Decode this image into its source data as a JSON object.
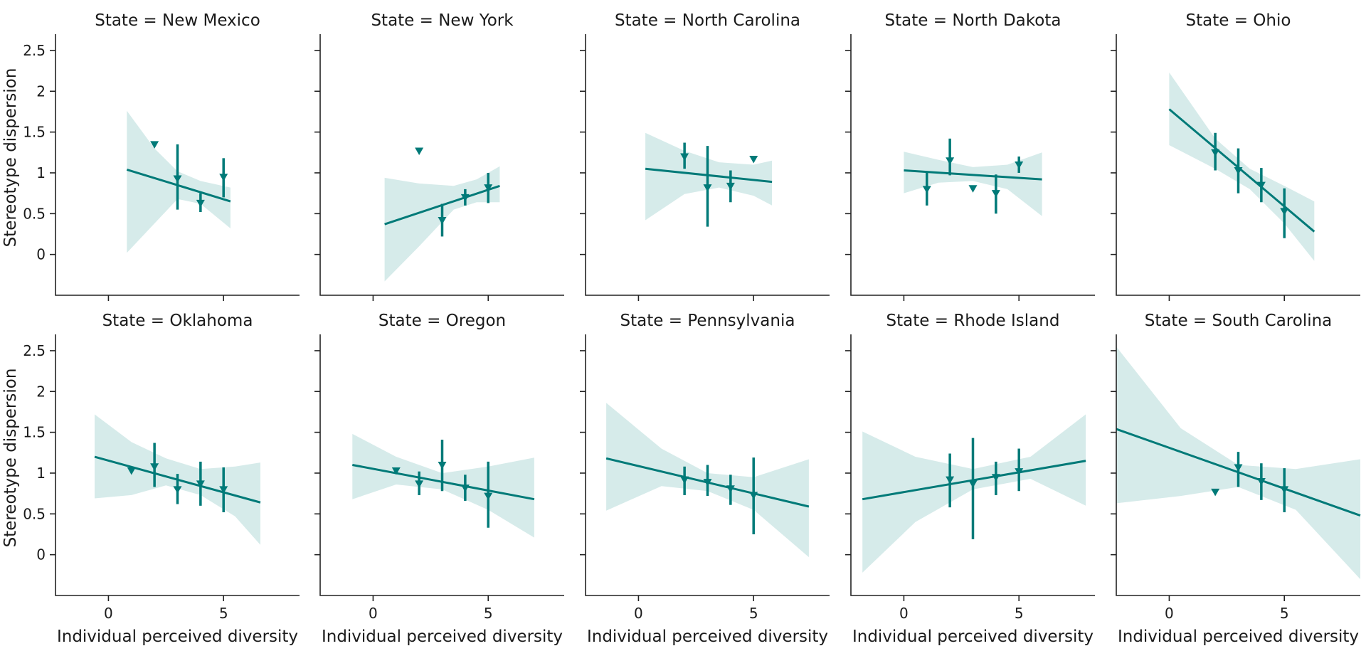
{
  "figure": {
    "ylabel": "Stereotype dispersion",
    "xlabel": "Individual perceived diversity",
    "accent_color": "#007a78",
    "band_color": "#d6ebea"
  },
  "chart_data": [
    {
      "type": "scatter",
      "title": "State = New Mexico",
      "xlim": [
        -2.3,
        8.3
      ],
      "ylim": [
        -0.5,
        2.7
      ],
      "xticks": [
        0,
        5
      ],
      "yticks": [
        0.0,
        0.5,
        1.0,
        1.5,
        2.0,
        2.5
      ],
      "grid": false,
      "points": [
        {
          "x": 2,
          "y": 1.35,
          "err": [
            1.35,
            1.35
          ]
        },
        {
          "x": 3,
          "y": 0.93,
          "err": [
            0.55,
            1.35
          ]
        },
        {
          "x": 4,
          "y": 0.63,
          "err": [
            0.52,
            0.75
          ]
        },
        {
          "x": 5,
          "y": 0.95,
          "err": [
            0.7,
            1.18
          ]
        }
      ],
      "fit": {
        "x": [
          0.8,
          5.3
        ],
        "y": [
          1.04,
          0.65
        ]
      },
      "ci": {
        "x": [
          0.8,
          2.0,
          3.0,
          4.0,
          5.3
        ],
        "upper": [
          1.76,
          1.3,
          1.02,
          0.9,
          0.82
        ],
        "lower": [
          0.02,
          0.38,
          0.68,
          0.62,
          0.32
        ]
      }
    },
    {
      "type": "scatter",
      "title": "State = New York",
      "xlim": [
        -2.3,
        8.3
      ],
      "ylim": [
        -0.5,
        2.7
      ],
      "xticks": [
        0,
        5
      ],
      "yticks": [
        0.0,
        0.5,
        1.0,
        1.5,
        2.0,
        2.5
      ],
      "grid": false,
      "points": [
        {
          "x": 2,
          "y": 1.27,
          "err": [
            1.27,
            1.27
          ]
        },
        {
          "x": 3,
          "y": 0.42,
          "err": [
            0.22,
            0.62
          ]
        },
        {
          "x": 4,
          "y": 0.7,
          "err": [
            0.6,
            0.8
          ]
        },
        {
          "x": 5,
          "y": 0.82,
          "err": [
            0.63,
            1.0
          ]
        }
      ],
      "fit": {
        "x": [
          0.5,
          5.5
        ],
        "y": [
          0.37,
          0.84
        ]
      },
      "ci": {
        "x": [
          0.5,
          2.0,
          3.5,
          4.5,
          5.5
        ],
        "upper": [
          0.94,
          0.87,
          0.84,
          0.92,
          1.08
        ],
        "lower": [
          -0.33,
          0.1,
          0.55,
          0.64,
          0.64
        ]
      }
    },
    {
      "type": "scatter",
      "title": "State = North Carolina",
      "xlim": [
        -2.3,
        8.3
      ],
      "ylim": [
        -0.5,
        2.7
      ],
      "xticks": [
        0,
        5
      ],
      "yticks": [
        0.0,
        0.5,
        1.0,
        1.5,
        2.0,
        2.5
      ],
      "grid": false,
      "points": [
        {
          "x": 2,
          "y": 1.2,
          "err": [
            1.05,
            1.37
          ]
        },
        {
          "x": 3,
          "y": 0.82,
          "err": [
            0.34,
            1.33
          ]
        },
        {
          "x": 4,
          "y": 0.84,
          "err": [
            0.64,
            1.03
          ]
        },
        {
          "x": 5,
          "y": 1.17,
          "err": [
            1.17,
            1.17
          ]
        }
      ],
      "fit": {
        "x": [
          0.3,
          5.8
        ],
        "y": [
          1.05,
          0.89
        ]
      },
      "ci": {
        "x": [
          0.3,
          2.0,
          3.5,
          5.0,
          5.8
        ],
        "upper": [
          1.49,
          1.27,
          1.13,
          1.1,
          1.15
        ],
        "lower": [
          0.42,
          0.74,
          0.82,
          0.72,
          0.6
        ]
      }
    },
    {
      "type": "scatter",
      "title": "State = North Dakota",
      "xlim": [
        -2.3,
        8.3
      ],
      "ylim": [
        -0.5,
        2.7
      ],
      "xticks": [
        0,
        5
      ],
      "yticks": [
        0.0,
        0.5,
        1.0,
        1.5,
        2.0,
        2.5
      ],
      "grid": false,
      "points": [
        {
          "x": 1,
          "y": 0.8,
          "err": [
            0.6,
            1.0
          ]
        },
        {
          "x": 2,
          "y": 1.15,
          "err": [
            0.97,
            1.42
          ]
        },
        {
          "x": 3,
          "y": 0.81,
          "err": [
            0.81,
            0.81
          ]
        },
        {
          "x": 4,
          "y": 0.75,
          "err": [
            0.5,
            0.98
          ]
        },
        {
          "x": 5,
          "y": 1.1,
          "err": [
            1.0,
            1.2
          ]
        }
      ],
      "fit": {
        "x": [
          0.0,
          6.0
        ],
        "y": [
          1.03,
          0.92
        ]
      },
      "ci": {
        "x": [
          0.0,
          1.5,
          3.0,
          4.5,
          6.0
        ],
        "upper": [
          1.26,
          1.16,
          1.07,
          1.1,
          1.25
        ],
        "lower": [
          0.75,
          0.88,
          0.9,
          0.8,
          0.47
        ]
      }
    },
    {
      "type": "scatter",
      "title": "State = Ohio",
      "xlim": [
        -2.3,
        8.3
      ],
      "ylim": [
        -0.5,
        2.7
      ],
      "xticks": [
        0,
        5
      ],
      "yticks": [
        0.0,
        0.5,
        1.0,
        1.5,
        2.0,
        2.5
      ],
      "grid": false,
      "points": [
        {
          "x": 2,
          "y": 1.25,
          "err": [
            1.03,
            1.49
          ]
        },
        {
          "x": 3,
          "y": 1.03,
          "err": [
            0.75,
            1.3
          ]
        },
        {
          "x": 4,
          "y": 0.85,
          "err": [
            0.64,
            1.06
          ]
        },
        {
          "x": 5,
          "y": 0.53,
          "err": [
            0.2,
            0.81
          ]
        }
      ],
      "fit": {
        "x": [
          0.0,
          6.3
        ],
        "y": [
          1.78,
          0.28
        ]
      },
      "ci": {
        "x": [
          0.0,
          2.0,
          3.5,
          5.0,
          6.3
        ],
        "upper": [
          2.23,
          1.42,
          1.05,
          0.84,
          0.65
        ],
        "lower": [
          1.34,
          1.05,
          0.8,
          0.38,
          -0.08
        ]
      }
    },
    {
      "type": "scatter",
      "title": "State = Oklahoma",
      "xlim": [
        -2.3,
        8.3
      ],
      "ylim": [
        -0.5,
        2.7
      ],
      "xticks": [
        0,
        5
      ],
      "yticks": [
        0.0,
        0.5,
        1.0,
        1.5,
        2.0,
        2.5
      ],
      "grid": false,
      "points": [
        {
          "x": 1,
          "y": 1.03,
          "err": [
            1.03,
            1.03
          ]
        },
        {
          "x": 2,
          "y": 1.08,
          "err": [
            0.83,
            1.37
          ]
        },
        {
          "x": 3,
          "y": 0.8,
          "err": [
            0.62,
            0.99
          ]
        },
        {
          "x": 4,
          "y": 0.87,
          "err": [
            0.6,
            1.14
          ]
        },
        {
          "x": 5,
          "y": 0.8,
          "err": [
            0.52,
            1.07
          ]
        }
      ],
      "fit": {
        "x": [
          -0.6,
          6.6
        ],
        "y": [
          1.2,
          0.64
        ]
      },
      "ci": {
        "x": [
          -0.6,
          1.0,
          2.5,
          4.0,
          5.5,
          6.6
        ],
        "upper": [
          1.72,
          1.38,
          1.18,
          1.05,
          1.08,
          1.13
        ],
        "lower": [
          0.69,
          0.73,
          0.85,
          0.73,
          0.47,
          0.12
        ]
      }
    },
    {
      "type": "scatter",
      "title": "State = Oregon",
      "xlim": [
        -2.3,
        8.3
      ],
      "ylim": [
        -0.5,
        2.7
      ],
      "xticks": [
        0,
        5
      ],
      "yticks": [
        0.0,
        0.5,
        1.0,
        1.5,
        2.0,
        2.5
      ],
      "grid": false,
      "points": [
        {
          "x": 1,
          "y": 1.03,
          "err": [
            1.03,
            1.03
          ]
        },
        {
          "x": 2,
          "y": 0.87,
          "err": [
            0.73,
            1.02
          ]
        },
        {
          "x": 3,
          "y": 1.1,
          "err": [
            0.78,
            1.41
          ]
        },
        {
          "x": 4,
          "y": 0.82,
          "err": [
            0.66,
            0.98
          ]
        },
        {
          "x": 5,
          "y": 0.72,
          "err": [
            0.33,
            1.14
          ]
        }
      ],
      "fit": {
        "x": [
          -0.9,
          7.0
        ],
        "y": [
          1.1,
          0.68
        ]
      },
      "ci": {
        "x": [
          -0.9,
          1.0,
          3.0,
          5.0,
          7.0
        ],
        "upper": [
          1.48,
          1.2,
          1.0,
          1.08,
          1.19
        ],
        "lower": [
          0.68,
          0.86,
          0.8,
          0.55,
          0.21
        ]
      }
    },
    {
      "type": "scatter",
      "title": "State = Pennsylvania",
      "xlim": [
        -2.3,
        8.3
      ],
      "ylim": [
        -0.5,
        2.7
      ],
      "xticks": [
        0,
        5
      ],
      "yticks": [
        0.0,
        0.5,
        1.0,
        1.5,
        2.0,
        2.5
      ],
      "grid": false,
      "points": [
        {
          "x": 2,
          "y": 0.92,
          "err": [
            0.73,
            1.08
          ]
        },
        {
          "x": 3,
          "y": 0.89,
          "err": [
            0.72,
            1.1
          ]
        },
        {
          "x": 4,
          "y": 0.81,
          "err": [
            0.61,
            0.98
          ]
        },
        {
          "x": 5,
          "y": 0.73,
          "err": [
            0.25,
            1.19
          ]
        }
      ],
      "fit": {
        "x": [
          -1.4,
          7.4
        ],
        "y": [
          1.18,
          0.59
        ]
      },
      "ci": {
        "x": [
          -1.4,
          1.0,
          3.0,
          5.0,
          7.4
        ],
        "upper": [
          1.86,
          1.3,
          1.0,
          0.95,
          1.17
        ],
        "lower": [
          0.54,
          0.84,
          0.78,
          0.55,
          -0.03
        ]
      }
    },
    {
      "type": "scatter",
      "title": "State = Rhode Island",
      "xlim": [
        -2.3,
        8.3
      ],
      "ylim": [
        -0.5,
        2.7
      ],
      "xticks": [
        0,
        5
      ],
      "yticks": [
        0.0,
        0.5,
        1.0,
        1.5,
        2.0,
        2.5
      ],
      "grid": false,
      "points": [
        {
          "x": 2,
          "y": 0.92,
          "err": [
            0.58,
            1.24
          ]
        },
        {
          "x": 3,
          "y": 0.87,
          "err": [
            0.19,
            1.43
          ]
        },
        {
          "x": 4,
          "y": 0.95,
          "err": [
            0.73,
            1.14
          ]
        },
        {
          "x": 5,
          "y": 1.02,
          "err": [
            0.78,
            1.3
          ]
        }
      ],
      "fit": {
        "x": [
          -1.8,
          7.9
        ],
        "y": [
          0.68,
          1.15
        ]
      },
      "ci": {
        "x": [
          -1.8,
          0.5,
          3.0,
          5.5,
          7.9
        ],
        "upper": [
          1.51,
          1.2,
          1.05,
          1.2,
          1.72
        ],
        "lower": [
          -0.22,
          0.4,
          0.8,
          0.93,
          0.6
        ]
      }
    },
    {
      "type": "scatter",
      "title": "State = South Carolina",
      "xlim": [
        -2.3,
        8.3
      ],
      "ylim": [
        -0.5,
        2.7
      ],
      "xticks": [
        0,
        5
      ],
      "yticks": [
        0.0,
        0.5,
        1.0,
        1.5,
        2.0,
        2.5
      ],
      "grid": false,
      "points": [
        {
          "x": 2,
          "y": 0.77,
          "err": [
            0.77,
            0.77
          ]
        },
        {
          "x": 3,
          "y": 1.07,
          "err": [
            0.83,
            1.26
          ]
        },
        {
          "x": 4,
          "y": 0.9,
          "err": [
            0.67,
            1.12
          ]
        },
        {
          "x": 5,
          "y": 0.8,
          "err": [
            0.52,
            1.06
          ]
        }
      ],
      "fit": {
        "x": [
          -2.3,
          8.3
        ],
        "y": [
          1.54,
          0.48
        ]
      },
      "ci": {
        "x": [
          -2.3,
          0.5,
          3.0,
          5.5,
          8.3
        ],
        "upper": [
          2.55,
          1.55,
          1.1,
          1.05,
          1.17
        ],
        "lower": [
          0.63,
          0.72,
          0.83,
          0.55,
          -0.3
        ]
      }
    }
  ]
}
